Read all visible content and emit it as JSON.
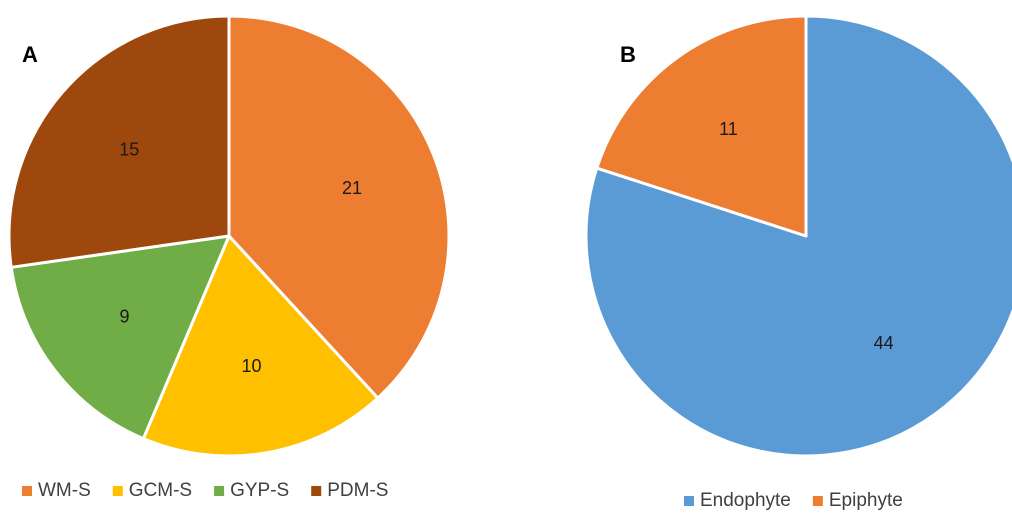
{
  "chart_data": [
    {
      "type": "pie",
      "panel_label": "A",
      "categories": [
        "WM-S",
        "GCM-S",
        "GYP-S",
        "PDM-S"
      ],
      "values": [
        21,
        10,
        9,
        15
      ],
      "colors": [
        "#ED7D31",
        "#FFC000",
        "#70AD47",
        "#9E480E"
      ],
      "data_labels": [
        "21",
        "10",
        "9",
        "15"
      ],
      "start_angle_deg": 0,
      "direction": "clockwise",
      "legend_position": "bottom"
    },
    {
      "type": "pie",
      "panel_label": "B",
      "categories": [
        "Endophyte",
        "Epiphyte"
      ],
      "values": [
        44,
        11
      ],
      "colors": [
        "#5B9BD5",
        "#ED7D31"
      ],
      "data_labels": [
        "44",
        "11"
      ],
      "start_angle_deg": 0,
      "direction": "clockwise",
      "legend_position": "bottom"
    }
  ]
}
